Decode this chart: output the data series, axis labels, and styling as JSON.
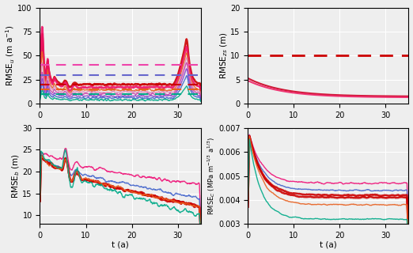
{
  "u_colors": [
    "#cc0000",
    "#ee1166",
    "#e86020",
    "#dd88bb",
    "#cc44aa",
    "#8844cc",
    "#4466cc",
    "#00aa88"
  ],
  "b_colors": [
    "#ee1177",
    "#4466cc",
    "#cc0000",
    "#cc0000",
    "#e86020",
    "#00aa88"
  ],
  "C_colors": [
    "#ee1177",
    "#4466cc",
    "#cc0000",
    "#cc0000",
    "#e86020",
    "#00aa88"
  ],
  "zs_colors": [
    "#cc0022",
    "#ee2266"
  ],
  "h_dashes_u": [
    [
      40,
      "#ee44aa"
    ],
    [
      30,
      "#6666cc"
    ],
    [
      20,
      "#cc0000"
    ],
    [
      15,
      "#e86020"
    ],
    [
      10,
      "#00aa88"
    ]
  ],
  "dashed_red_zs": 10,
  "xlabel": "t (a)",
  "ylabel_u": "RMSE$_u$ (m a$^{-1}$)",
  "ylabel_zs": "RMSE$_{zs}$ (m)",
  "ylabel_b": "RMSE$_b$ (m)",
  "ylabel_C": "RMSE$_C$ (MPa m$^{-1/3}$ a$^{1/3}$)",
  "ylim_u": [
    0,
    100
  ],
  "ylim_zs": [
    0,
    20
  ],
  "ylim_b": [
    8,
    30
  ],
  "ylim_C": [
    0.003,
    0.007
  ],
  "xlim": [
    0,
    35
  ],
  "bg_color": "#eeeeee",
  "grid_color": "white",
  "tick_fontsize": 7,
  "label_fontsize": 7.5
}
